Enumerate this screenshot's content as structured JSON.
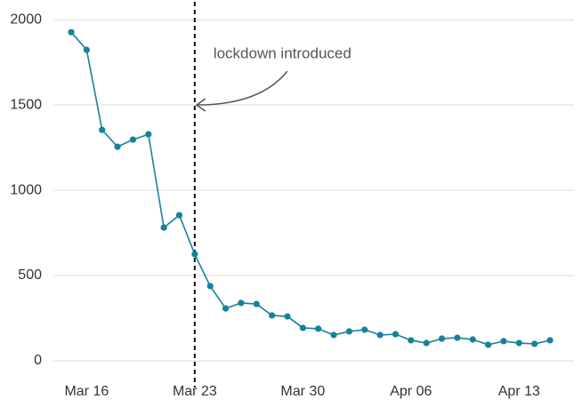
{
  "chart_data": {
    "type": "line",
    "categories": [
      "Mar 15",
      "Mar 16",
      "Mar 17",
      "Mar 18",
      "Mar 19",
      "Mar 20",
      "Mar 21",
      "Mar 22",
      "Mar 23",
      "Mar 24",
      "Mar 25",
      "Mar 26",
      "Mar 27",
      "Mar 28",
      "Mar 29",
      "Mar 30",
      "Mar 31",
      "Apr 01",
      "Apr 02",
      "Apr 03",
      "Apr 04",
      "Apr 05",
      "Apr 06",
      "Apr 07",
      "Apr 08",
      "Apr 09",
      "Apr 10",
      "Apr 11",
      "Apr 12",
      "Apr 13",
      "Apr 14",
      "Apr 15"
    ],
    "values": [
      1927,
      1823,
      1354,
      1255,
      1297,
      1328,
      781,
      854,
      625,
      438,
      307,
      339,
      333,
      266,
      260,
      193,
      188,
      151,
      172,
      182,
      151,
      156,
      120,
      104,
      130,
      135,
      125,
      94,
      115,
      104,
      99,
      120
    ],
    "color": "#17819b",
    "xticks": [
      "Mar 16",
      "Mar 23",
      "Mar 30",
      "Apr 06",
      "Apr 13"
    ],
    "ylim": [
      -120,
      2100
    ],
    "yticks": [
      0,
      500,
      1000,
      1500,
      2000
    ],
    "grid": true,
    "annotation": {
      "text": "lockdown introduced",
      "x": "Mar 23",
      "y": 1500
    }
  }
}
